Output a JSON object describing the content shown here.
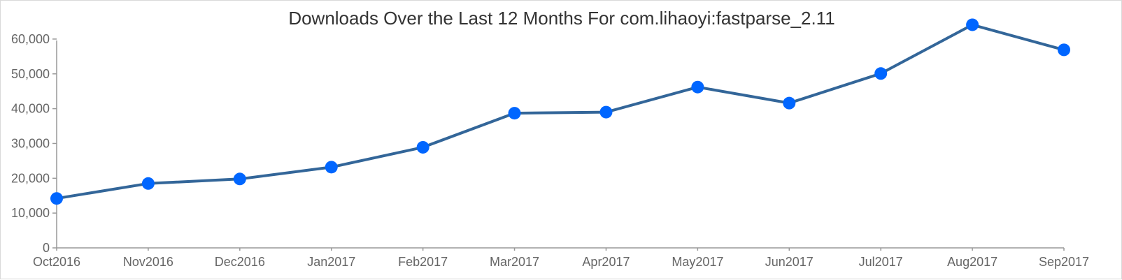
{
  "chart_data": {
    "type": "line",
    "title": "Downloads Over the Last 12 Months For com.lihaoyi:fastparse_2.11",
    "xlabel": "",
    "ylabel": "",
    "categories": [
      "Oct2016",
      "Nov2016",
      "Dec2016",
      "Jan2017",
      "Feb2017",
      "Mar2017",
      "Apr2017",
      "May2017",
      "Jun2017",
      "Jul2017",
      "Aug2017",
      "Sep2017"
    ],
    "series": [
      {
        "values": [
          14200,
          18500,
          19800,
          23200,
          28900,
          38700,
          39000,
          46200,
          41600,
          50100,
          64100,
          56900
        ]
      }
    ],
    "ylim": [
      0,
      65000
    ],
    "yticks": [
      0,
      10000,
      20000,
      30000,
      40000,
      50000,
      60000
    ],
    "ytick_labels": [
      "0",
      "10,000",
      "20,000",
      "30,000",
      "40,000",
      "50,000",
      "60,000"
    ],
    "grid": false,
    "legend": "none",
    "colors": {
      "line": "#336699",
      "marker": "#0066ff",
      "axis": "#999999",
      "tick_text": "#666666",
      "title_text": "#333333"
    }
  }
}
